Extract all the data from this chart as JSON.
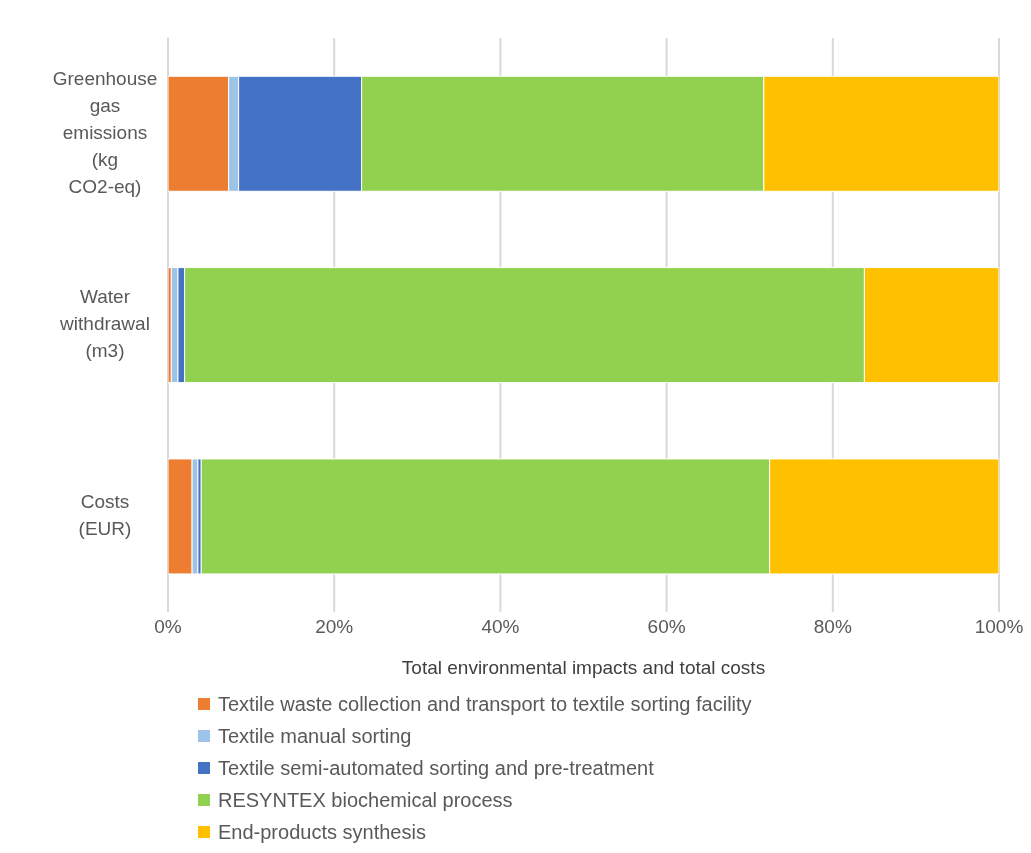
{
  "chart_data": {
    "type": "bar",
    "orientation": "horizontal",
    "stacked": true,
    "categories": [
      "Greenhouse gas emissions (kg CO2-eq)",
      "Water withdrawal (m3)",
      "Costs (EUR)"
    ],
    "series": [
      {
        "name": "Textile waste collection and transport to textile sorting facility",
        "color": "#ed7d31",
        "values": [
          7.3,
          0.4,
          2.9
        ]
      },
      {
        "name": "Textile manual sorting",
        "color": "#9dc3e6",
        "values": [
          1.2,
          0.8,
          0.7
        ]
      },
      {
        "name": "Textile semi-automated sorting and pre-treatment",
        "color": "#4472c4",
        "values": [
          14.8,
          0.8,
          0.4
        ]
      },
      {
        "name": "RESYNTEX biochemical process",
        "color": "#92d050",
        "values": [
          48.4,
          81.8,
          68.4
        ]
      },
      {
        "name": "End-products synthesis",
        "color": "#ffc000",
        "values": [
          28.3,
          16.2,
          27.6
        ]
      }
    ],
    "xlim": [
      0,
      100
    ],
    "xticks": [
      {
        "value": 0,
        "label": "0%"
      },
      {
        "value": 20,
        "label": "20%"
      },
      {
        "value": 40,
        "label": "40%"
      },
      {
        "value": 60,
        "label": "60%"
      },
      {
        "value": 80,
        "label": "80%"
      },
      {
        "value": 100,
        "label": "100%"
      }
    ],
    "xlabel": "Total environmental impacts and total costs",
    "grid": "x",
    "legend": "bottom"
  }
}
